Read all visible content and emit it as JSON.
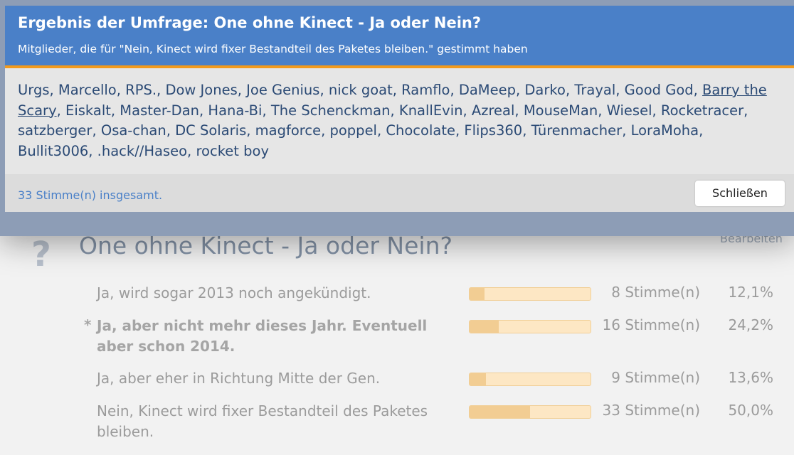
{
  "dialog": {
    "title": "Ergebnis der Umfrage: One ohne Kinect - Ja oder Nein?",
    "subtitle": "Mitglieder, die für \"Nein, Kinect wird fixer Bestandteil des Paketes bleiben.\" gestimmt haben",
    "separator": ",",
    "voters": [
      "Urgs",
      "Marcello",
      "RPS.",
      "Dow Jones",
      "Joe Genius",
      "nick goat",
      "Ramflo",
      "DaMeep",
      "Darko",
      "Trayal",
      "Good God",
      "Barry the Scary",
      "Eiskalt",
      "Master-Dan",
      "Hana-Bi",
      "The Schenckman",
      "KnallEvin",
      "Azreal",
      "MouseMan",
      "Wiesel",
      "Rocketracer",
      "satzberger",
      "Osa-chan",
      "DC Solaris",
      "magforce",
      "poppel",
      "Chocolate",
      "Flips360",
      "Türenmacher",
      "LoraMoha",
      "Bullit3006",
      ".hack//Haseo",
      "rocket boy"
    ],
    "total": "33 Stimme(n) insgesamt.",
    "close": "Schließen"
  },
  "poll": {
    "icon": "?",
    "title": "One ohne Kinect - Ja oder Nein?",
    "edit": "Bearbeiten",
    "options": [
      {
        "text": "Ja, wird sogar 2013 noch angekündigt.",
        "votes": "8 Stimme(n)",
        "percent": 12.1,
        "percent_label": "12,1%"
      },
      {
        "marker": "*",
        "text": "Ja, aber nicht mehr dieses Jahr. Eventuell aber schon 2014.",
        "votes": "16 Stimme(n)",
        "percent": 24.2,
        "percent_label": "24,2%"
      },
      {
        "text": "Ja, aber eher in Richtung Mitte der Gen.",
        "votes": "9 Stimme(n)",
        "percent": 13.6,
        "percent_label": "13,6%"
      },
      {
        "text": "Nein, Kinect wird fixer Bestandteil des Paketes bleiben.",
        "votes": "33 Stimme(n)",
        "percent": 50.0,
        "percent_label": "50,0%"
      }
    ]
  }
}
